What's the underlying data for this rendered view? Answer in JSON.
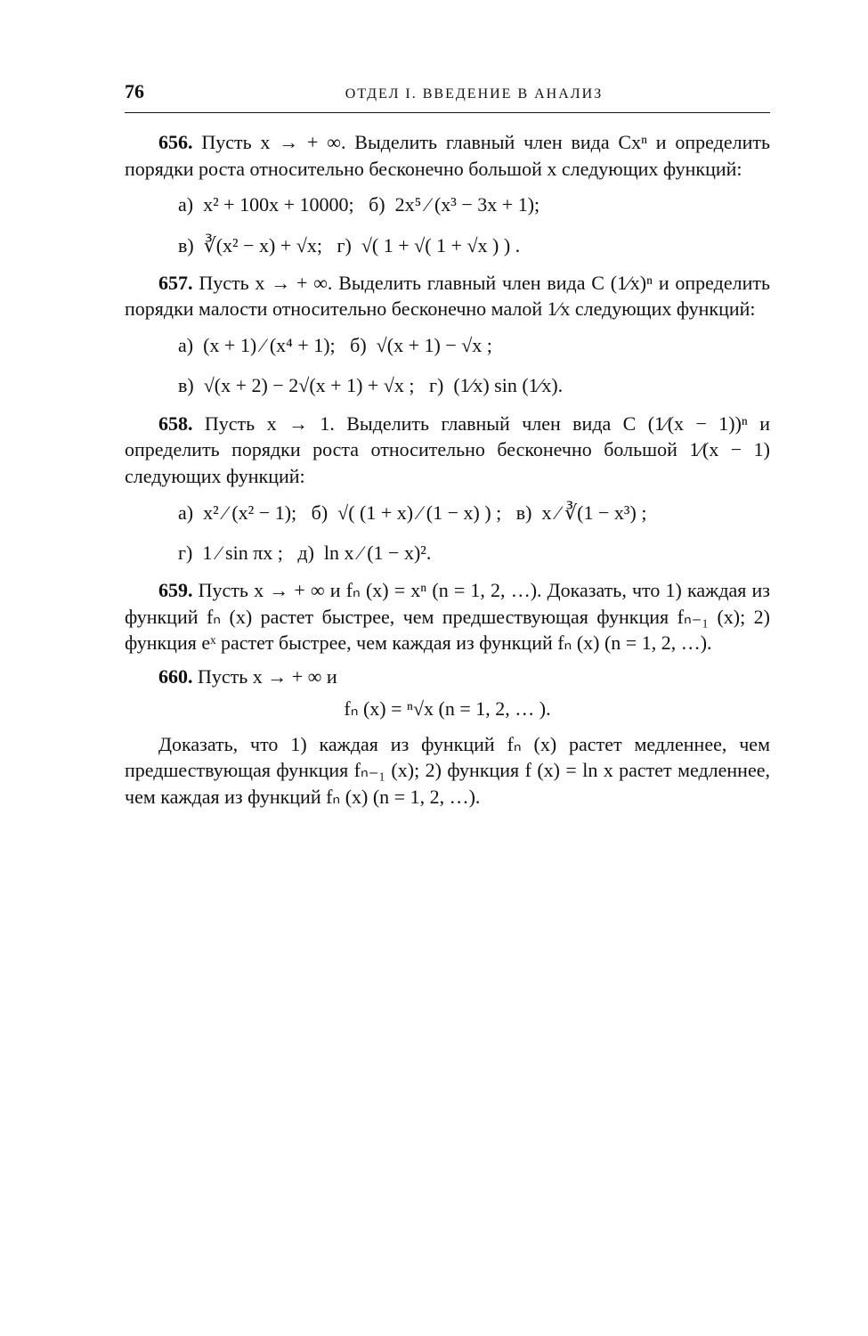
{
  "page_number": "76",
  "section_header": "ОТДЕЛ I. ВВЕДЕНИЕ В АНАЛИЗ",
  "p656": {
    "num": "656.",
    "text": "Пусть x → + ∞. Выделить главный член вида Cxⁿ и определить порядки роста относительно бесконечно большой x следующих функций:"
  },
  "m656a": "а)  x² + 100x + 10000;   б)  2x⁵ ⁄ (x³ − 3x + 1);",
  "m656b": "в)  ∛(x² − x) + √x;   г)  √( 1 + √( 1 + √x ) ) .",
  "p657": {
    "num": "657.",
    "text": "Пусть x → + ∞. Выделить главный член вида C (1⁄x)ⁿ и определить порядки малости относительно бесконечно малой 1⁄x следующих функций:"
  },
  "m657a": "а)  (x + 1) ⁄ (x⁴ + 1);   б)  √(x + 1) − √x ;",
  "m657b": "в)  √(x + 2) − 2√(x + 1) + √x ;   г)  (1⁄x) sin (1⁄x).",
  "p658": {
    "num": "658.",
    "text": "Пусть x → 1. Выделить главный член вида C (1⁄(x − 1))ⁿ и определить порядки роста относительно бесконечно большой 1⁄(x − 1) следующих функций:"
  },
  "m658a": "а)  x² ⁄ (x² − 1);   б)  √( (1 + x) ⁄ (1 − x) ) ;   в)  x ⁄ ∛(1 − x³) ;",
  "m658b": "г)  1 ⁄ sin πx ;   д)  ln x ⁄ (1 − x)².",
  "p659": {
    "num": "659.",
    "text": "Пусть x → + ∞ и fₙ (x) = xⁿ (n = 1, 2, …). Доказать, что 1) каждая из функций fₙ (x) растет быстрее, чем предшествующая функция fₙ₋₁ (x); 2) функция eˣ растет быстрее, чем каждая из функций fₙ (x) (n = 1, 2, …)."
  },
  "p660": {
    "num": "660.",
    "text_a": "Пусть x → + ∞ и",
    "formula": "fₙ (x) = ⁿ√x     (n = 1, 2, … ).",
    "text_b": "Доказать, что 1) каждая из функций fₙ (x) растет медленнее, чем предшествующая функция fₙ₋₁ (x); 2) функция f (x) = ln x растет медленнее, чем каждая из функций fₙ (x) (n = 1, 2, …)."
  }
}
